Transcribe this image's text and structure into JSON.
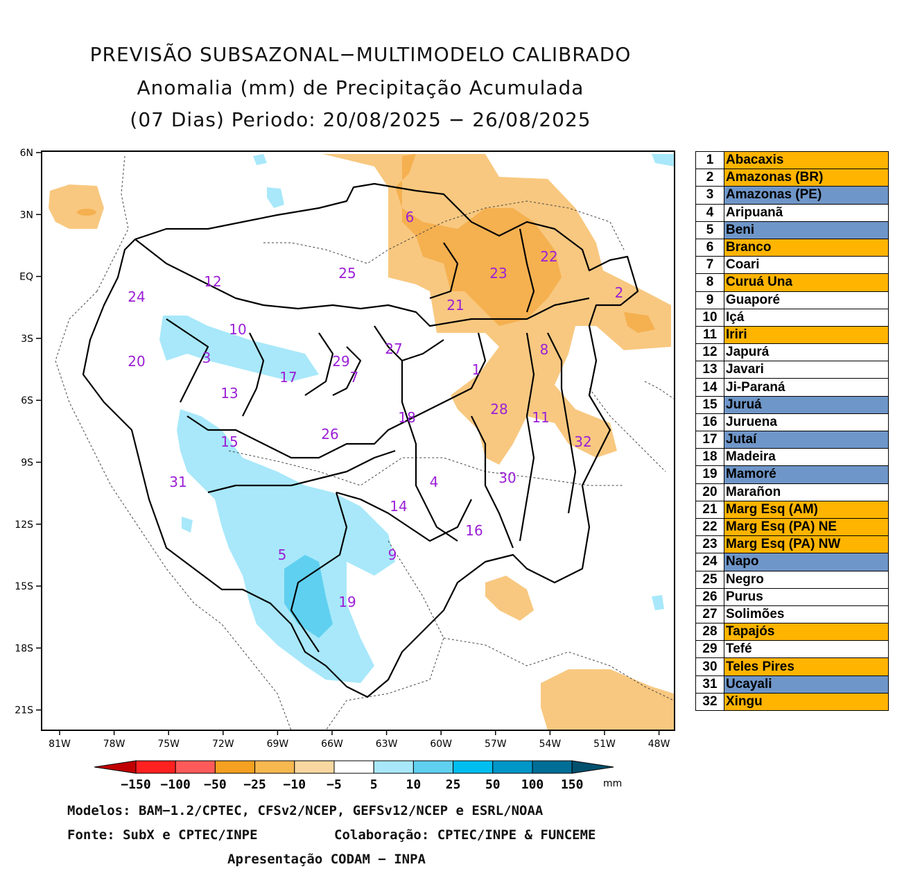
{
  "title": {
    "line1": "PREVISÃO SUBSAZONAL−MULTIMODELO CALIBRADO",
    "line2": "Anomalia (mm) de Precipitação Acumulada",
    "line3": "(07 Dias) Periodo: 20/08/2025 − 26/08/2025"
  },
  "axes": {
    "lat_labels": [
      "6N",
      "3N",
      "EQ",
      "3S",
      "6S",
      "9S",
      "12S",
      "15S",
      "18S",
      "21S"
    ],
    "lon_labels": [
      "81W",
      "78W",
      "75W",
      "72W",
      "69W",
      "66W",
      "63W",
      "60W",
      "57W",
      "54W",
      "51W",
      "48W"
    ]
  },
  "colorbar": {
    "labels": [
      "−150",
      "−100",
      "−50",
      "−25",
      "−10",
      "−5",
      "5",
      "10",
      "25",
      "50",
      "100",
      "150"
    ],
    "unit": "mm",
    "colors": [
      "#c00000",
      "#ff2020",
      "#ff5a5a",
      "#f5a020",
      "#f8b850",
      "#f8d8a0",
      "#ffffff",
      "#a8e8fa",
      "#60d0f0",
      "#00bff0",
      "#0096c8",
      "#006e96",
      "#00506e"
    ]
  },
  "basin_labels": [
    "1",
    "2",
    "3",
    "4",
    "5",
    "6",
    "7",
    "8",
    "9",
    "10",
    "11",
    "12",
    "13",
    "14",
    "15",
    "16",
    "17",
    "18",
    "19",
    "20",
    "21",
    "22",
    "23",
    "24",
    "25",
    "26",
    "27",
    "28",
    "29",
    "30",
    "31",
    "32"
  ],
  "basins": [
    {
      "num": "1",
      "name": "Abacaxis",
      "color": "#ffb400"
    },
    {
      "num": "2",
      "name": "Amazonas (BR)",
      "color": "#ffb400"
    },
    {
      "num": "3",
      "name": "Amazonas (PE)",
      "color": "#6f96c8"
    },
    {
      "num": "4",
      "name": "Aripuanã",
      "color": "#ffffff"
    },
    {
      "num": "5",
      "name": "Beni",
      "color": "#6f96c8"
    },
    {
      "num": "6",
      "name": "Branco",
      "color": "#ffb400"
    },
    {
      "num": "7",
      "name": "Coari",
      "color": "#ffffff"
    },
    {
      "num": "8",
      "name": "Curuá Una",
      "color": "#ffb400"
    },
    {
      "num": "9",
      "name": "Guaporé",
      "color": "#ffffff"
    },
    {
      "num": "10",
      "name": "Içá",
      "color": "#ffffff"
    },
    {
      "num": "11",
      "name": "Iriri",
      "color": "#ffb400"
    },
    {
      "num": "12",
      "name": "Japurá",
      "color": "#ffffff"
    },
    {
      "num": "13",
      "name": "Javari",
      "color": "#ffffff"
    },
    {
      "num": "14",
      "name": "Ji-Paraná",
      "color": "#ffffff"
    },
    {
      "num": "15",
      "name": "Juruá",
      "color": "#6f96c8"
    },
    {
      "num": "16",
      "name": "Juruena",
      "color": "#ffffff"
    },
    {
      "num": "17",
      "name": "Jutaí",
      "color": "#6f96c8"
    },
    {
      "num": "18",
      "name": "Madeira",
      "color": "#ffffff"
    },
    {
      "num": "19",
      "name": "Mamoré",
      "color": "#6f96c8"
    },
    {
      "num": "20",
      "name": "Marañon",
      "color": "#ffffff"
    },
    {
      "num": "21",
      "name": "Marg Esq (AM)",
      "color": "#ffb400"
    },
    {
      "num": "22",
      "name": "Marg Esq (PA) NE",
      "color": "#ffb400"
    },
    {
      "num": "23",
      "name": "Marg Esq (PA) NW",
      "color": "#ffb400"
    },
    {
      "num": "24",
      "name": "Napo",
      "color": "#6f96c8"
    },
    {
      "num": "25",
      "name": "Negro",
      "color": "#ffffff"
    },
    {
      "num": "26",
      "name": "Purus",
      "color": "#ffffff"
    },
    {
      "num": "27",
      "name": "Solimões",
      "color": "#ffffff"
    },
    {
      "num": "28",
      "name": "Tapajós",
      "color": "#ffb400"
    },
    {
      "num": "29",
      "name": "Tefé",
      "color": "#ffffff"
    },
    {
      "num": "30",
      "name": "Teles Pires",
      "color": "#ffb400"
    },
    {
      "num": "31",
      "name": "Ucayali",
      "color": "#6f96c8"
    },
    {
      "num": "32",
      "name": "Xingu",
      "color": "#ffb400"
    }
  ],
  "footer": {
    "models": "Modelos: BAM−1.2/CPTEC, CFSv2/NCEP, GEFSv12/NCEP e ESRL/NOAA",
    "source": "Fonte: SubX e CPTEC/INPE",
    "collab": "Colaboração: CPTEC/INPE & FUNCEME",
    "presentation": "Apresentação CODAM − INPA"
  },
  "colors": {
    "label": "#9b1fd6",
    "dry": "#f8c880",
    "dry_strong": "#f5b050",
    "wet": "#a8e8fa",
    "wet_strong": "#60d0f0"
  }
}
